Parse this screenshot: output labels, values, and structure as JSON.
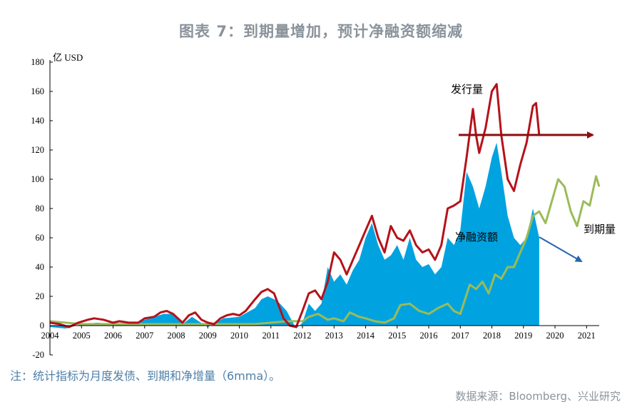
{
  "title": "图表 7：到期量增加，预计净融资额缩减",
  "note": "注：统计指标为月度发债、到期和净增量（6mma）。",
  "source": "数据来源：Bloomberg、兴业研究",
  "colors": {
    "issuance": "#b5121b",
    "maturity": "#9bbb59",
    "net": "#00a3e0",
    "arrow_red": "#8b0e12",
    "arrow_blue": "#2a63b1",
    "title": "#8a939b",
    "note": "#4e7fa8"
  },
  "chart_data": {
    "type": "line",
    "unit_label": "亿 USD",
    "xlim": [
      2004.0,
      2021.4
    ],
    "ylim": [
      -20,
      180
    ],
    "y_ticks": [
      -20,
      0,
      20,
      40,
      60,
      80,
      100,
      120,
      140,
      160,
      180
    ],
    "x_ticks": [
      "2004",
      "2005",
      "2006",
      "2007",
      "2008",
      "2009",
      "2010",
      "2011",
      "2012",
      "2013",
      "2014",
      "2015",
      "2016",
      "2017",
      "2018",
      "2019",
      "2020",
      "2021"
    ],
    "grid": false,
    "annotations": {
      "issuance": "发行量",
      "net": "净融资额",
      "maturity": "到期量"
    },
    "series": [
      {
        "key": "issuance",
        "type": "line",
        "x": [
          2004.0,
          2004.3,
          2004.6,
          2004.9,
          2005.2,
          2005.4,
          2005.7,
          2006.0,
          2006.2,
          2006.5,
          2006.8,
          2007.0,
          2007.3,
          2007.5,
          2007.7,
          2007.9,
          2008.2,
          2008.4,
          2008.6,
          2008.8,
          2009.0,
          2009.2,
          2009.4,
          2009.6,
          2009.8,
          2010.0,
          2010.2,
          2010.5,
          2010.7,
          2010.9,
          2011.1,
          2011.4,
          2011.6,
          2011.8,
          2012.0,
          2012.2,
          2012.4,
          2012.6,
          2012.8,
          2013.0,
          2013.2,
          2013.4,
          2013.6,
          2013.8,
          2014.0,
          2014.2,
          2014.4,
          2014.6,
          2014.8,
          2015.0,
          2015.2,
          2015.4,
          2015.6,
          2015.8,
          2016.0,
          2016.2,
          2016.4,
          2016.6,
          2016.8,
          2017.0,
          2017.2,
          2017.4,
          2017.5,
          2017.6,
          2017.8,
          2018.0,
          2018.15,
          2018.3,
          2018.5,
          2018.7,
          2018.9,
          2019.1,
          2019.3,
          2019.4,
          2019.5
        ],
        "y": [
          2,
          1,
          -1,
          2,
          4,
          5,
          4,
          2,
          3,
          2,
          2,
          5,
          6,
          9,
          10,
          8,
          2,
          7,
          9,
          4,
          2,
          1,
          5,
          7,
          8,
          7,
          10,
          18,
          23,
          25,
          22,
          5,
          0,
          -1,
          10,
          22,
          24,
          18,
          30,
          50,
          45,
          35,
          45,
          55,
          65,
          75,
          60,
          50,
          68,
          60,
          58,
          65,
          55,
          50,
          52,
          45,
          55,
          80,
          82,
          85,
          115,
          148,
          130,
          118,
          135,
          160,
          165,
          130,
          100,
          92,
          110,
          125,
          150,
          152,
          130
        ]
      },
      {
        "key": "maturity",
        "type": "line",
        "x": [
          2004.0,
          2004.5,
          2005.0,
          2005.5,
          2006.0,
          2006.5,
          2007.0,
          2007.5,
          2008.0,
          2008.5,
          2009.0,
          2009.5,
          2010.0,
          2010.5,
          2011.0,
          2011.5,
          2012.0,
          2012.2,
          2012.5,
          2012.8,
          2013.0,
          2013.3,
          2013.5,
          2013.8,
          2014.0,
          2014.3,
          2014.6,
          2014.9,
          2015.1,
          2015.4,
          2015.7,
          2016.0,
          2016.3,
          2016.6,
          2016.8,
          2017.0,
          2017.3,
          2017.5,
          2017.7,
          2017.9,
          2018.1,
          2018.3,
          2018.5,
          2018.7,
          2018.9,
          2019.1,
          2019.3,
          2019.5,
          2019.7,
          2019.9,
          2020.1,
          2020.3,
          2020.5,
          2020.7,
          2020.9,
          2021.1,
          2021.3,
          2021.4
        ],
        "y": [
          3,
          2,
          1,
          1,
          1,
          1,
          1,
          1,
          1,
          1,
          1,
          1,
          1,
          1,
          2,
          3,
          3,
          6,
          8,
          4,
          5,
          3,
          9,
          6,
          5,
          3,
          2,
          5,
          14,
          15,
          10,
          8,
          12,
          15,
          10,
          8,
          28,
          25,
          30,
          22,
          35,
          32,
          40,
          40,
          50,
          60,
          75,
          78,
          70,
          85,
          100,
          95,
          78,
          68,
          85,
          82,
          102,
          95
        ]
      },
      {
        "key": "net",
        "type": "area",
        "x": [
          2004.0,
          2004.5,
          2005.0,
          2005.5,
          2006.0,
          2006.5,
          2007.0,
          2007.3,
          2007.6,
          2007.9,
          2008.2,
          2008.5,
          2009.0,
          2009.5,
          2010.0,
          2010.5,
          2010.7,
          2010.9,
          2011.2,
          2011.5,
          2011.8,
          2012.0,
          2012.2,
          2012.4,
          2012.6,
          2012.8,
          2013.0,
          2013.2,
          2013.4,
          2013.6,
          2013.8,
          2014.0,
          2014.2,
          2014.4,
          2014.6,
          2014.8,
          2015.0,
          2015.2,
          2015.4,
          2015.6,
          2015.8,
          2016.0,
          2016.2,
          2016.4,
          2016.6,
          2016.8,
          2017.0,
          2017.2,
          2017.4,
          2017.6,
          2017.8,
          2018.0,
          2018.15,
          2018.3,
          2018.5,
          2018.7,
          2018.9,
          2019.1,
          2019.3,
          2019.5
        ],
        "y": [
          -1,
          -2,
          1,
          2,
          1,
          1,
          4,
          6,
          8,
          8,
          1,
          6,
          -1,
          5,
          6,
          12,
          18,
          20,
          17,
          10,
          -2,
          2,
          15,
          10,
          15,
          40,
          30,
          35,
          28,
          38,
          45,
          60,
          70,
          55,
          45,
          48,
          55,
          45,
          60,
          45,
          40,
          42,
          35,
          40,
          60,
          55,
          65,
          105,
          95,
          80,
          95,
          115,
          125,
          105,
          75,
          60,
          55,
          60,
          80,
          60
        ]
      }
    ]
  }
}
